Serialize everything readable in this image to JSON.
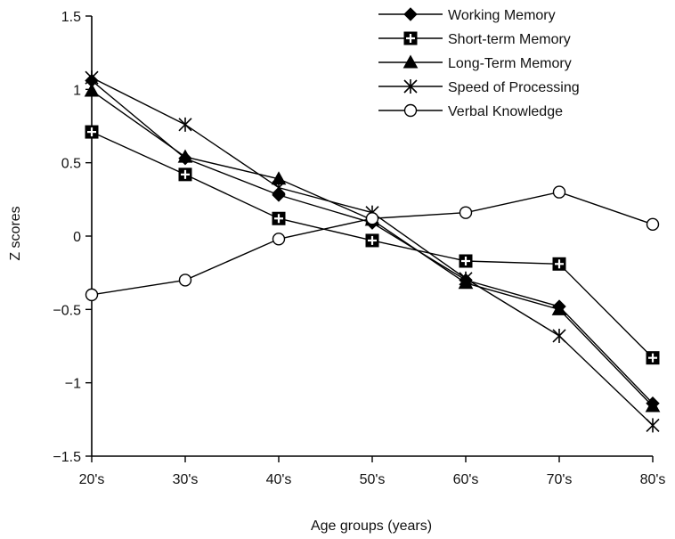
{
  "chart_data": {
    "type": "line",
    "categories": [
      "20's",
      "30's",
      "40's",
      "50's",
      "60's",
      "70's",
      "80's"
    ],
    "xlabel": "Age groups (years)",
    "ylabel": "Z scores",
    "ylim": [
      -1.5,
      1.5
    ],
    "yticks": [
      -1.5,
      -1,
      -0.5,
      0,
      0.5,
      1,
      1.5
    ],
    "ytick_labels": [
      "−1.5",
      "−1",
      "−0.5",
      "0",
      "0.5",
      "1",
      "1.5"
    ],
    "grid": false,
    "legend_position": "top-right",
    "series": [
      {
        "name": "Working Memory",
        "marker": "diamond-filled",
        "values": [
          1.06,
          0.53,
          0.28,
          0.09,
          -0.3,
          -0.48,
          -1.14
        ]
      },
      {
        "name": "Short-term Memory",
        "marker": "square-cross",
        "values": [
          0.71,
          0.42,
          0.12,
          -0.03,
          -0.17,
          -0.19,
          -0.83
        ]
      },
      {
        "name": "Long-Term Memory",
        "marker": "triangle-filled",
        "values": [
          0.99,
          0.54,
          0.39,
          0.11,
          -0.32,
          -0.5,
          -1.16
        ]
      },
      {
        "name": "Speed of Processing",
        "marker": "asterisk",
        "values": [
          1.08,
          0.76,
          0.33,
          0.16,
          -0.29,
          -0.68,
          -1.29
        ]
      },
      {
        "name": "Verbal Knowledge",
        "marker": "circle-open",
        "values": [
          -0.4,
          -0.3,
          -0.02,
          0.12,
          0.16,
          0.3,
          0.08
        ]
      }
    ]
  }
}
